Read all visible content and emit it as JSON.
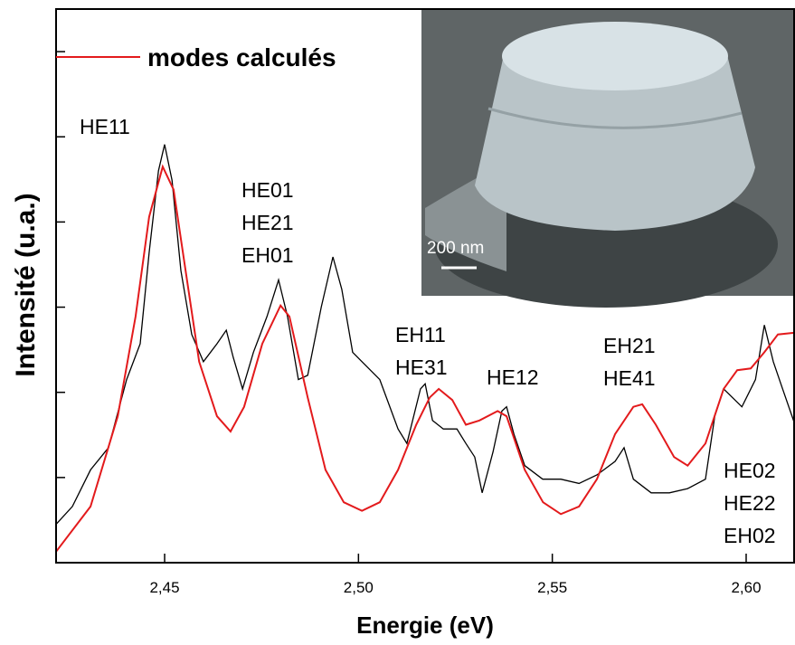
{
  "chart_data": {
    "type": "line",
    "x_label": "Energie (eV)",
    "y_label": "Intensité (u.a.)",
    "xlim": [
      2.422,
      2.6126
    ],
    "ylim": [
      0,
      6.5
    ],
    "xticks": [
      {
        "value": 2.45,
        "label": "2,45"
      },
      {
        "value": 2.5,
        "label": "2,50"
      },
      {
        "value": 2.55,
        "label": "2,55"
      },
      {
        "value": 2.6,
        "label": "2,60"
      }
    ],
    "yticks": [
      1,
      2,
      3,
      4,
      5,
      6
    ],
    "legend": "top-left",
    "series": [
      {
        "color": "#000000",
        "x": [
          2.422,
          2.4262,
          2.4309,
          2.4355,
          2.4402,
          2.4437,
          2.446,
          2.4484,
          2.45,
          2.4519,
          2.4542,
          2.457,
          2.46,
          2.4635,
          2.4659,
          2.4677,
          2.4701,
          2.4729,
          2.4764,
          2.4794,
          2.4817,
          2.4845,
          2.4869,
          2.4904,
          2.4934,
          2.4957,
          2.4985,
          2.5009,
          2.5055,
          2.5102,
          2.5125,
          2.516,
          2.5172,
          2.5191,
          2.5219,
          2.5254,
          2.5277,
          2.53,
          2.5319,
          2.5347,
          2.537,
          2.5382,
          2.5401,
          2.5429,
          2.5475,
          2.5522,
          2.5569,
          2.5615,
          2.5662,
          2.5685,
          2.5709,
          2.5755,
          2.5802,
          2.5849,
          2.5895,
          2.5919,
          2.5942,
          2.5989,
          2.6024,
          2.6047,
          2.607,
          2.6094,
          2.6126
        ],
        "values": [
          0.45,
          0.66,
          1.09,
          1.35,
          2.15,
          2.57,
          3.64,
          4.6,
          4.91,
          4.49,
          3.43,
          2.68,
          2.36,
          2.57,
          2.73,
          2.41,
          2.04,
          2.47,
          2.89,
          3.32,
          2.89,
          2.15,
          2.2,
          3.0,
          3.59,
          3.21,
          2.47,
          2.36,
          2.15,
          1.57,
          1.4,
          2.04,
          2.1,
          1.67,
          1.57,
          1.57,
          1.4,
          1.24,
          0.82,
          1.3,
          1.78,
          1.83,
          1.51,
          1.14,
          0.98,
          0.98,
          0.93,
          1.03,
          1.19,
          1.35,
          0.98,
          0.82,
          0.82,
          0.87,
          0.98,
          1.72,
          2.04,
          1.83,
          2.15,
          2.79,
          2.36,
          2.04,
          1.62
        ]
      },
      {
        "name": "modes calculés",
        "color": "#e31a1c",
        "x": [
          2.422,
          2.4309,
          2.4379,
          2.4425,
          2.446,
          2.4495,
          2.4523,
          2.4554,
          2.4589,
          2.4635,
          2.467,
          2.4705,
          2.4752,
          2.4799,
          2.4822,
          2.4869,
          2.4915,
          2.4962,
          2.5009,
          2.5055,
          2.5102,
          2.5149,
          2.5184,
          2.5207,
          2.5242,
          2.5277,
          2.5312,
          2.5359,
          2.5382,
          2.5429,
          2.5476,
          2.5522,
          2.5569,
          2.5615,
          2.5662,
          2.5709,
          2.5732,
          2.5767,
          2.5814,
          2.5849,
          2.5895,
          2.5942,
          2.5977,
          2.6012,
          2.6047,
          2.6082,
          2.6126
        ],
        "values": [
          0.13,
          0.66,
          1.72,
          2.89,
          4.06,
          4.65,
          4.38,
          3.43,
          2.36,
          1.72,
          1.54,
          1.83,
          2.57,
          3.02,
          2.89,
          1.94,
          1.09,
          0.71,
          0.61,
          0.71,
          1.09,
          1.62,
          1.94,
          2.04,
          1.91,
          1.62,
          1.67,
          1.78,
          1.72,
          1.09,
          0.71,
          0.57,
          0.66,
          0.98,
          1.51,
          1.83,
          1.86,
          1.62,
          1.24,
          1.14,
          1.4,
          2.04,
          2.26,
          2.28,
          2.47,
          2.68,
          2.7
        ]
      }
    ],
    "annotations": [
      [
        "HE11"
      ],
      [
        "HE01",
        "HE21",
        "EH01"
      ],
      [
        "EH11",
        "HE31"
      ],
      [
        "HE12"
      ],
      [
        "EH21",
        "HE41"
      ],
      [
        "HE02",
        "HE22",
        "EH02"
      ]
    ],
    "inset_scale_label": "200 nm"
  }
}
